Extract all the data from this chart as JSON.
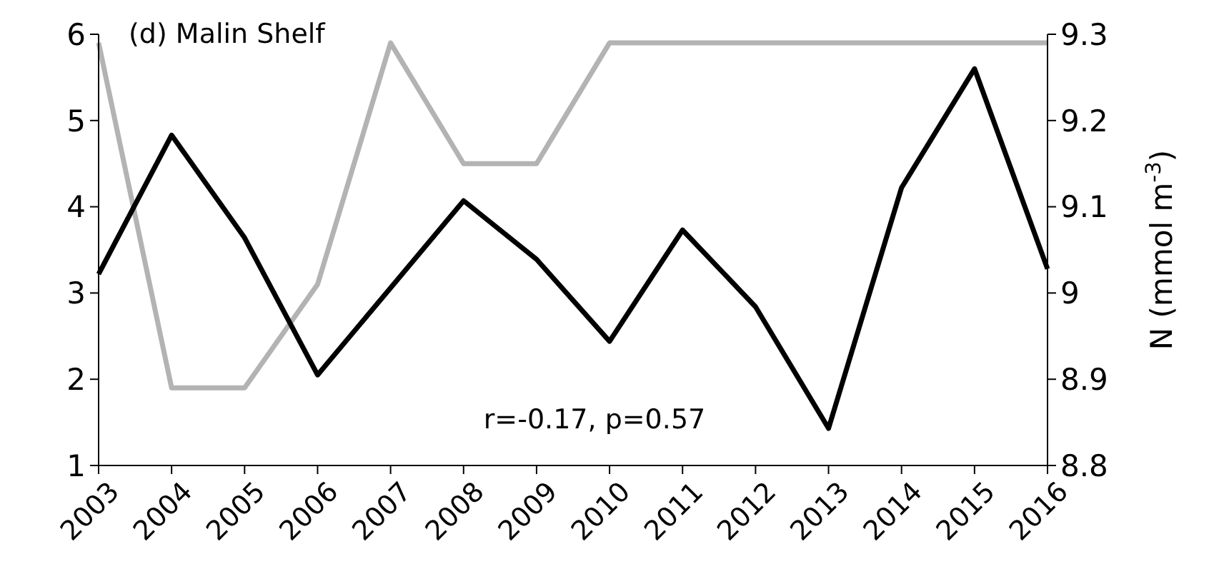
{
  "chart_data": {
    "type": "line",
    "y2label": "N (mmol m$^{-3}$)",
    "annotations": [
      "(d) Malin Shelf",
      "r=-0.17,  p=0.57"
    ],
    "x": [
      2003,
      2004,
      2005,
      2006,
      2007,
      2008,
      2009,
      2010,
      2011,
      2012,
      2013,
      2014,
      2015,
      2016
    ],
    "xlim": [
      2003,
      2016
    ],
    "xticks": [
      {
        "value": 2003,
        "label": "2003"
      },
      {
        "value": 2004,
        "label": "2004"
      },
      {
        "value": 2005,
        "label": "2005"
      },
      {
        "value": 2006,
        "label": "2006"
      },
      {
        "value": 2007,
        "label": "2007"
      },
      {
        "value": 2008,
        "label": "2008"
      },
      {
        "value": 2009,
        "label": "2009"
      },
      {
        "value": 2010,
        "label": "2010"
      },
      {
        "value": 2011,
        "label": "2011"
      },
      {
        "value": 2012,
        "label": "2012"
      },
      {
        "value": 2013,
        "label": "2013"
      },
      {
        "value": 2014,
        "label": "2014"
      },
      {
        "value": 2015,
        "label": "2015"
      },
      {
        "value": 2016,
        "label": "2016"
      }
    ],
    "ylim": [
      1,
      6
    ],
    "yticks": [
      1,
      2,
      3,
      4,
      5,
      6
    ],
    "y2lim": [
      8.8,
      9.3
    ],
    "y2ticks": [
      8.8,
      8.9,
      9.1,
      9.2,
      9.3,
      {
        "value": 9,
        "label": "9"
      }
    ],
    "grid": false,
    "marker": "none",
    "line_style": "solid",
    "series": [
      {
        "color": "#b3b3b3",
        "axis": "y2",
        "values": [
          9.29,
          8.89,
          8.89,
          9.01,
          9.29,
          9.15,
          9.15,
          9.29,
          9.29,
          9.29,
          9.29,
          9.29,
          9.29,
          9.29
        ]
      },
      {
        "color": "#000000",
        "values": [
          3.22,
          4.83,
          3.64,
          2.05,
          3.06,
          4.07,
          3.39,
          2.44,
          3.73,
          2.84,
          1.43,
          4.22,
          5.6,
          3.28
        ]
      }
    ]
  }
}
